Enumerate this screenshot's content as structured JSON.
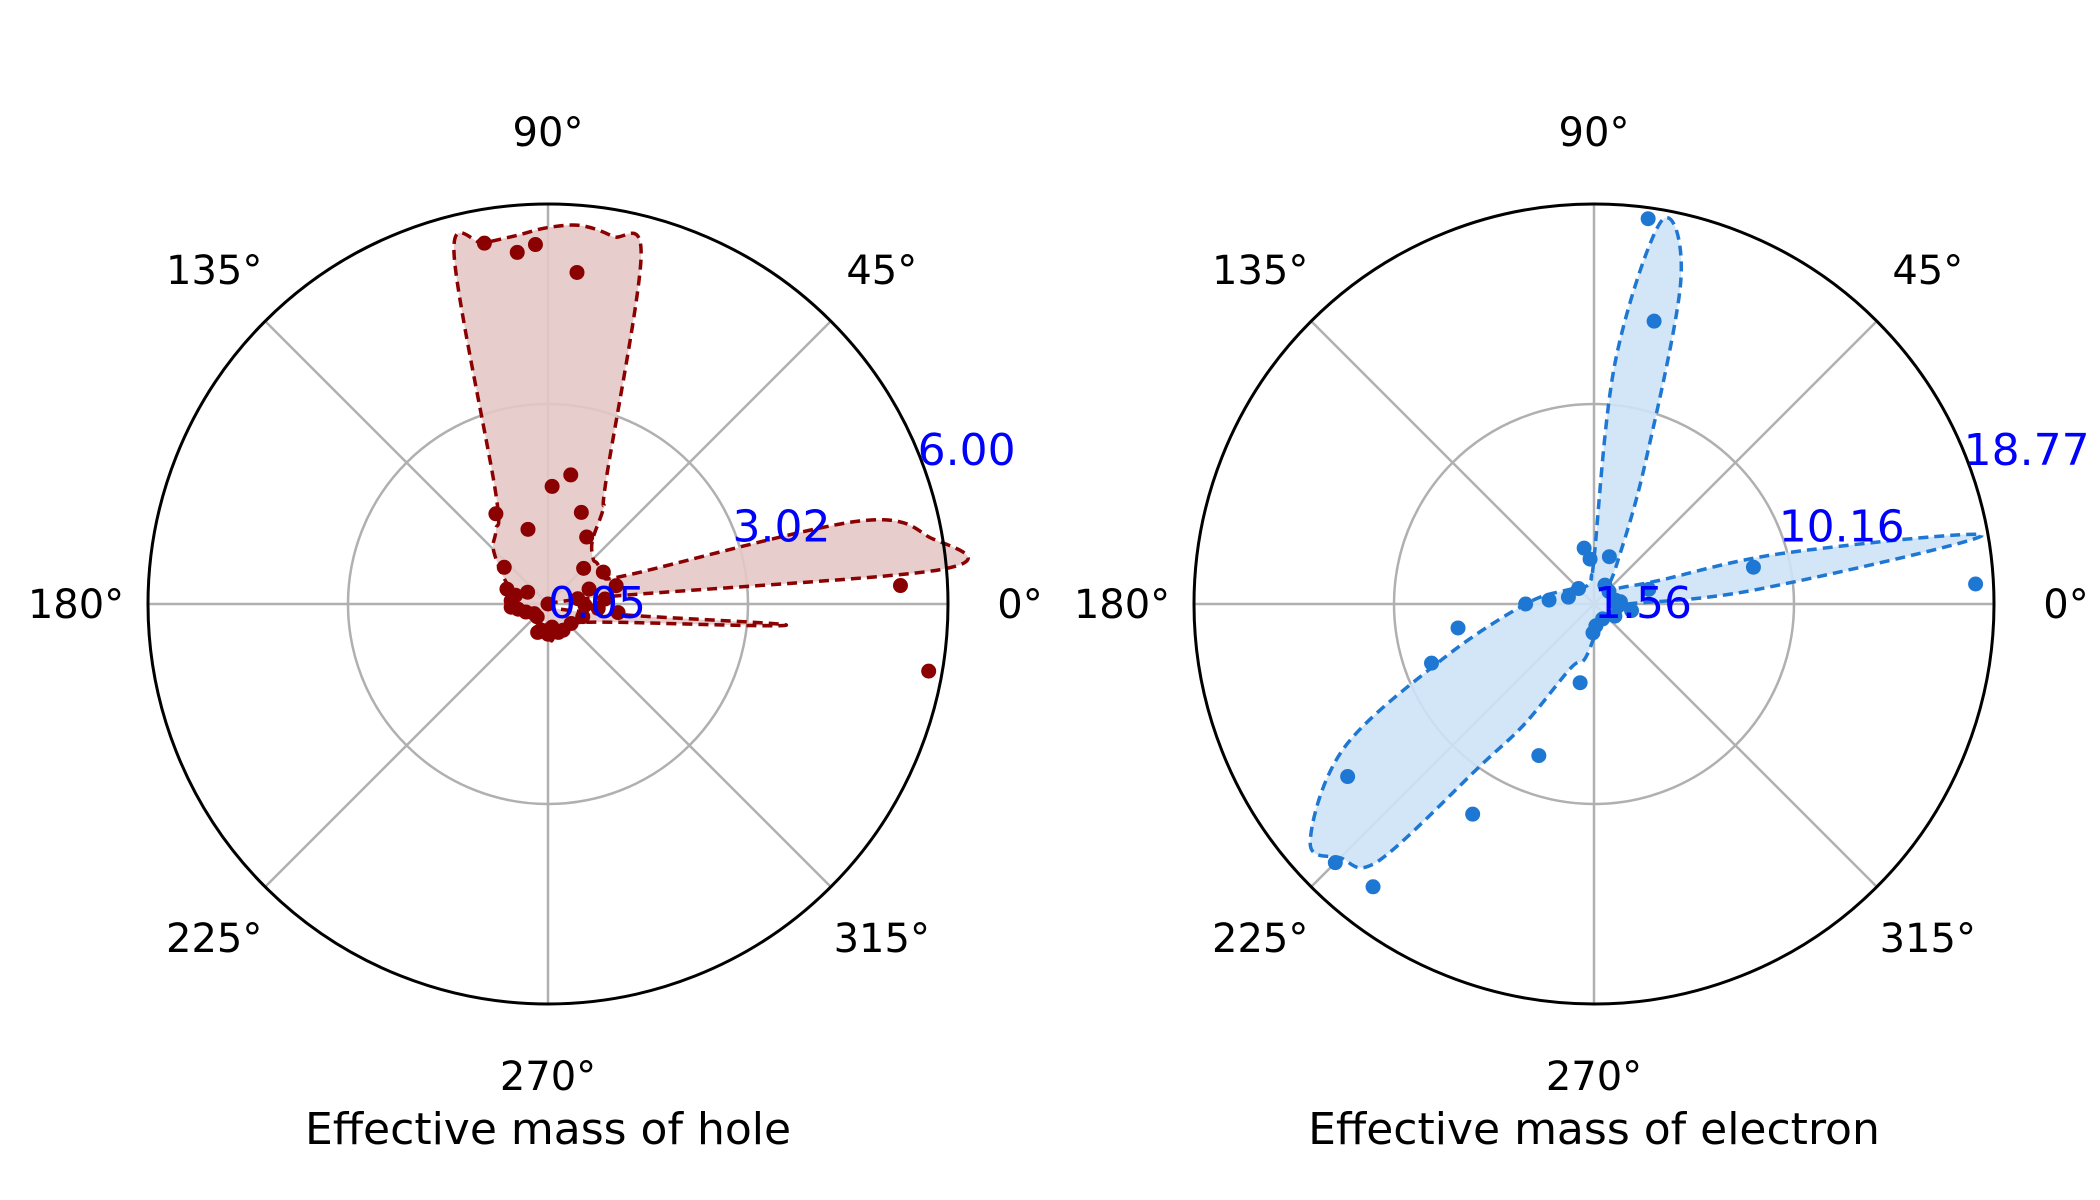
{
  "chart_data": [
    {
      "type": "polar",
      "title": "",
      "xlabel": "Effective mass of hole",
      "angle_ticks": [
        "0°",
        "45°",
        "90°",
        "135°",
        "180°",
        "225°",
        "270°",
        "315°"
      ],
      "radial_ticks": [
        "0.05",
        "3.02",
        "6.00"
      ],
      "rlim": [
        0.05,
        6.0
      ],
      "grid": true,
      "colors": {
        "line": "#8b0000",
        "fill": "#e6c8c8",
        "tick_text": "#0000ff"
      },
      "series": [
        {
          "name": "hole",
          "theta_deg": [
            0,
            5,
            10,
            15,
            20,
            25,
            30,
            40,
            45,
            55,
            60,
            65,
            75,
            80,
            85,
            90,
            95,
            100,
            105,
            115,
            125,
            135,
            150,
            160,
            165,
            170,
            175,
            180,
            185,
            190,
            200,
            210,
            225,
            240,
            255,
            265,
            270,
            275,
            280,
            285,
            290,
            295,
            300,
            315,
            330,
            345,
            355
          ],
          "r": [
            0.05,
            5.9,
            5.8,
            4.8,
            1.3,
            1.1,
            1.0,
            1.0,
            1.0,
            1.2,
            1.7,
            2.1,
            5.4,
            5.6,
            5.7,
            5.65,
            5.55,
            5.5,
            5.45,
            1.9,
            1.4,
            1.2,
            0.8,
            0.6,
            0.55,
            0.55,
            0.55,
            0.6,
            0.65,
            0.65,
            0.5,
            0.4,
            0.3,
            0.3,
            0.3,
            0.4,
            0.5,
            0.6,
            0.55,
            0.5,
            0.5,
            0.5,
            0.45,
            0.45,
            0.6,
            1.1,
            3.6
          ],
          "markers_theta_deg": [
            3,
            10,
            350,
            5,
            353,
            355,
            358,
            20,
            45,
            70,
            80,
            85,
            92,
            100,
            120,
            140,
            160,
            175,
            185,
            190,
            200,
            215,
            230,
            250,
            270,
            280,
            290,
            300,
            320,
            340,
            8,
            15,
            30,
            60,
            88,
            95,
            105,
            150,
            165,
            255
          ],
          "markers_r": [
            5.3,
            0.5,
            5.8,
            0.9,
            1.1,
            0.8,
            0.6,
            0.7,
            0.8,
            1.5,
            2.0,
            5.0,
            5.4,
            5.5,
            1.6,
            0.9,
            0.7,
            0.6,
            0.6,
            0.5,
            0.4,
            0.3,
            0.3,
            0.5,
            0.5,
            0.4,
            0.5,
            0.5,
            0.5,
            0.6,
            0.05,
            1.1,
            1.0,
            1.2,
            1.8,
            5.3,
            1.2,
            0.4,
            0.55,
            0.45
          ]
        }
      ]
    },
    {
      "type": "polar",
      "title": "",
      "xlabel": "Effective mass of electron",
      "angle_ticks": [
        "0°",
        "45°",
        "90°",
        "135°",
        "180°",
        "225°",
        "270°",
        "315°"
      ],
      "radial_ticks": [
        "1.56",
        "10.16",
        "18.77"
      ],
      "rlim": [
        1.56,
        18.77
      ],
      "grid": true,
      "colors": {
        "line": "#1f77d4",
        "fill": "#cde3f7",
        "tick_text": "#0000ff"
      },
      "series": [
        {
          "name": "electron",
          "theta_deg": [
            0,
            5,
            10,
            15,
            20,
            30,
            40,
            50,
            60,
            70,
            75,
            80,
            85,
            90,
            95,
            100,
            120,
            150,
            180,
            200,
            210,
            220,
            225,
            230,
            235,
            240,
            250,
            260,
            270,
            280,
            300,
            330,
            350,
            355
          ],
          "r": [
            3.0,
            8.5,
            18.5,
            10.0,
            4.5,
            3.0,
            2.5,
            2.4,
            3.5,
            8.0,
            16.0,
            18.3,
            12.0,
            3.5,
            2.8,
            2.5,
            2.4,
            2.8,
            4.5,
            8.5,
            14.0,
            17.5,
            17.0,
            16.0,
            10.0,
            7.5,
            4.5,
            4.0,
            3.0,
            2.5,
            2.3,
            2.4,
            2.6,
            2.8
          ],
          "markers_theta_deg": [
            3,
            13,
            15,
            82,
            78,
            72,
            95,
            100,
            135,
            165,
            175,
            180,
            190,
            200,
            215,
            225,
            232,
            240,
            250,
            260,
            268,
            275,
            300,
            330,
            355,
            40,
            60,
            10,
            350,
            5
          ],
          "markers_r": [
            18.0,
            8.6,
            4.0,
            18.3,
            14.0,
            3.7,
            3.5,
            4.0,
            2.5,
            2.7,
            3.5,
            4.5,
            7.5,
            9.0,
            14.5,
            17.3,
            17.0,
            12.0,
            8.5,
            5.0,
            2.8,
            2.5,
            2.3,
            2.6,
            2.6,
            2.4,
            2.5,
            2.5,
            3.2,
            2.7
          ]
        }
      ]
    }
  ]
}
